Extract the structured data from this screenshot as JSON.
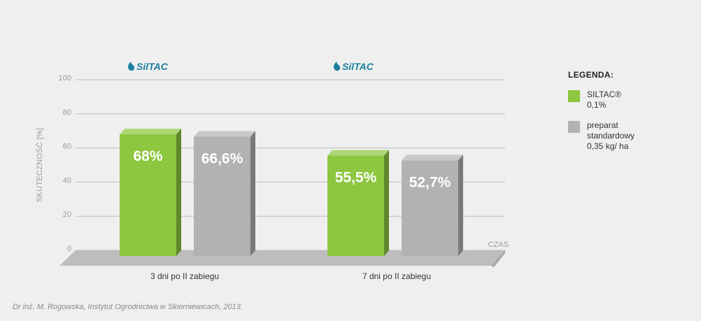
{
  "chart_data": {
    "type": "bar",
    "ylabel": "SKUTECZNOŚĆ [%]",
    "xlabel": "CZAS",
    "ylim": [
      0,
      100
    ],
    "yticks": [
      "0",
      "20",
      "40",
      "60",
      "80",
      "100"
    ],
    "grid": true,
    "categories": [
      "3 dni po II zabiegu",
      "7 dni po II zabiegu"
    ],
    "category_logo_text": "SilTAC",
    "series": [
      {
        "name": "SILTAC® 0,1%",
        "color": "#8dc63f",
        "values": [
          68,
          55.5
        ],
        "labels": [
          "68%",
          "55,5%"
        ]
      },
      {
        "name": "preparat standardowy 0,35 kg/ ha",
        "color": "#b2b2b2",
        "values": [
          66.6,
          52.7
        ],
        "labels": [
          "66,6%",
          "52,7%"
        ]
      }
    ],
    "legend_position": "right"
  },
  "legend": {
    "title": "LEGENDA:",
    "items": [
      {
        "label": "SILTAC®\n0,1%",
        "color": "#8dc63f"
      },
      {
        "label": "preparat\nstandardowy\n0,35 kg/ ha",
        "color": "#b2b2b2"
      }
    ]
  },
  "source": "Dr inż. M. Rogowska, Instytut Ogrodnictwa w Skierniewicach, 2013."
}
